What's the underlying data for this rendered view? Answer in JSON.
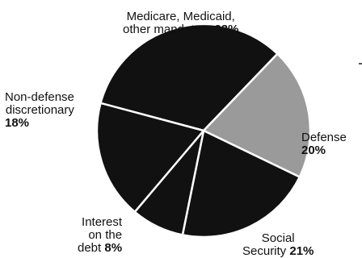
{
  "chart_data": {
    "type": "pie",
    "title": "",
    "slices": [
      {
        "label_lines": [
          "Medicare, Medicaid,",
          "other mandatory"
        ],
        "value": 33,
        "pct_text": "33%",
        "color": "#111111"
      },
      {
        "label_lines": [
          "Defense"
        ],
        "value": 20,
        "pct_text": "20%",
        "color": "#9a9a9a"
      },
      {
        "label_lines": [
          "Social",
          "Security"
        ],
        "value": 21,
        "pct_text": "21%",
        "color": "#111111"
      },
      {
        "label_lines": [
          "Interest",
          "on the",
          "debt"
        ],
        "value": 8,
        "pct_text": "8%",
        "color": "#111111"
      },
      {
        "label_lines": [
          "Non-defense",
          "discretionary"
        ],
        "value": 18,
        "pct_text": "18%",
        "color": "#111111"
      }
    ],
    "legend": "none",
    "separator_color": "#ffffff"
  }
}
